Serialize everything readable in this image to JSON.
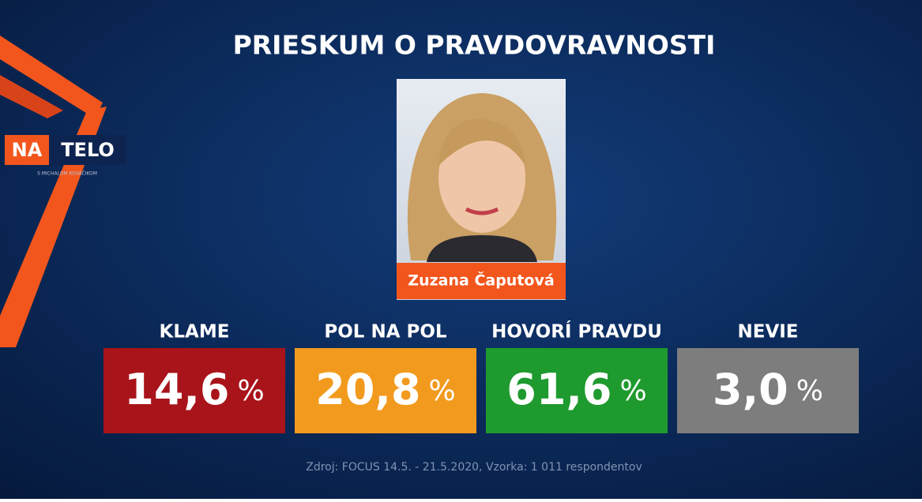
{
  "header": {
    "title": "PRIESKUM O PRAVDOVRAVNOSTI"
  },
  "logo": {
    "left": "NA",
    "right": "TELO",
    "subtitle": "S MICHALOM KOVÁČIKOM"
  },
  "person": {
    "name": "Zuzana Čaputová"
  },
  "tiles": [
    {
      "label": "KLAME",
      "value": "14,6",
      "unit": "%",
      "color": "#a8141a"
    },
    {
      "label": "POL NA POL",
      "value": "20,8",
      "unit": "%",
      "color": "#f29a1e"
    },
    {
      "label": "HOVORÍ PRAVDU",
      "value": "61,6",
      "unit": "%",
      "color": "#1f9a2e"
    },
    {
      "label": "NEVIE",
      "value": "3,0",
      "unit": "%",
      "color": "#7d7d7d"
    }
  ],
  "footer": {
    "source": "Zdroj: FOCUS 14.5. - 21.5.2020, Vzorka: 1 011 respondentov"
  }
}
